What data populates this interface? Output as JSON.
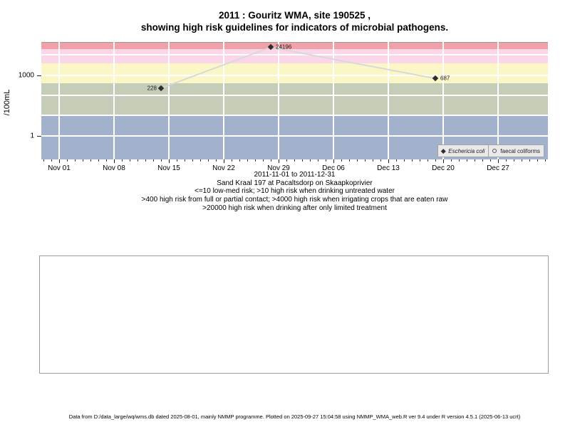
{
  "title": {
    "line1": "2011 : Gouritz WMA, site 190525 ,",
    "line2": "showing high risk guidelines for indicators of microbial pathogens."
  },
  "chart_data": {
    "type": "scatter",
    "title": "2011 : Gouritz WMA, site 190525 , showing high risk guidelines for indicators of microbial pathogens.",
    "ylabel": "/100mL",
    "y_scale": "log10",
    "y_domain_log10": [
      -1.175,
      4.648
    ],
    "y_ticks": [
      {
        "value": 1000,
        "label": "1000"
      },
      {
        "value": 1,
        "label": "1"
      }
    ],
    "y_gridlines": [
      1,
      10,
      100,
      1000,
      10000
    ],
    "x_domain_days": [
      -2.27,
      62.36
    ],
    "x_minor_tick_step_days": 1,
    "x_ticks": [
      {
        "day": 0,
        "label": "Nov 01"
      },
      {
        "day": 7,
        "label": "Nov 08"
      },
      {
        "day": 14,
        "label": "Nov 15"
      },
      {
        "day": 21,
        "label": "Nov 22"
      },
      {
        "day": 28,
        "label": "Nov 29"
      },
      {
        "day": 35,
        "label": "Dec 06"
      },
      {
        "day": 42,
        "label": "Dec 13"
      },
      {
        "day": 49,
        "label": "Dec 20"
      },
      {
        "day": 56,
        "label": "Dec 27"
      }
    ],
    "bands": [
      {
        "name": "band-high-risk-limited-treatment",
        "from": 20000,
        "to": null,
        "color": "#f0a1a9"
      },
      {
        "name": "band-high-risk-irrigation",
        "from": 4000,
        "to": 20000,
        "color": "#fbd6e9"
      },
      {
        "name": "band-high-risk-contact",
        "from": 400,
        "to": 4000,
        "color": "#faf6c5"
      },
      {
        "name": "band-high-risk-drinking",
        "from": 10,
        "to": 400,
        "color": "#c5cdb9"
      },
      {
        "name": "band-low-med-risk",
        "from": null,
        "to": 10,
        "color": "#a3b2cc"
      }
    ],
    "series": [
      {
        "name": "Eschericia coli",
        "marker": "filled-diamond",
        "points": [
          {
            "day": 13,
            "value": 228,
            "label": "228",
            "label_side": "left"
          },
          {
            "day": 27,
            "value": 24196,
            "label": "24196",
            "label_side": "right"
          },
          {
            "day": 48,
            "value": 687,
            "label": "687",
            "label_side": "right"
          }
        ]
      },
      {
        "name": "faecal coliforms",
        "marker": "open-circle",
        "points": []
      }
    ],
    "legend": [
      {
        "marker": "filled-diamond",
        "label": "Eschericia coli",
        "italic": true
      },
      {
        "marker": "open-circle",
        "label": "faecal coliforms",
        "italic": false
      }
    ],
    "line_color": "#d8d8d8",
    "gridline_color": "#ffffff",
    "marker_color": "#2e2e2e",
    "legend_position": "bottom-right-inside"
  },
  "captions": {
    "date_range": "2011-11-01 to 2011-12-31",
    "site_description": "Sand Kraal 197 at Pacaltsdorp on Skaapkoprivier",
    "guideline1": "<=10 low-med risk; >10 high risk when drinking untreated water",
    "guideline2": ">400 high risk from full or partial contact; >4000 high risk when irrigating crops that are eaten raw",
    "guideline3": ">20000 high risk when drinking after only limited treatment"
  },
  "footer": {
    "text": "Data from D:/data_large/wq/wms.db dated 2025-08-01, mainly NMMP programme. Plotted on 2025-09-27 15:04:58 using NMMP_WMA_web.R ver 9.4 under R version 4.5.1 (2025-06-13 ucrt)"
  }
}
